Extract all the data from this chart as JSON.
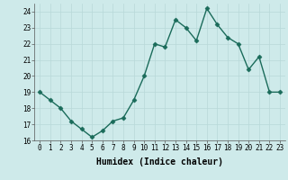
{
  "x": [
    0,
    1,
    2,
    3,
    4,
    5,
    6,
    7,
    8,
    9,
    10,
    11,
    12,
    13,
    14,
    15,
    16,
    17,
    18,
    19,
    20,
    21,
    22,
    23
  ],
  "y": [
    19,
    18.5,
    18,
    17.2,
    16.7,
    16.2,
    16.6,
    17.2,
    17.4,
    18.5,
    20,
    22,
    21.8,
    23.5,
    23,
    22.2,
    24.2,
    23.2,
    22.4,
    22,
    20.4,
    21.2,
    19,
    19
  ],
  "line_color": "#1a6b5a",
  "marker": "D",
  "marker_size": 2.5,
  "bg_color": "#ceeaea",
  "grid_color": "#b8d8d8",
  "xlabel": "Humidex (Indice chaleur)",
  "ylim": [
    16,
    24.5
  ],
  "xlim": [
    -0.5,
    23.5
  ],
  "yticks": [
    16,
    17,
    18,
    19,
    20,
    21,
    22,
    23,
    24
  ],
  "xticks": [
    0,
    1,
    2,
    3,
    4,
    5,
    6,
    7,
    8,
    9,
    10,
    11,
    12,
    13,
    14,
    15,
    16,
    17,
    18,
    19,
    20,
    21,
    22,
    23
  ],
  "tick_fontsize": 5.5,
  "label_fontsize": 7,
  "linewidth": 1.0
}
